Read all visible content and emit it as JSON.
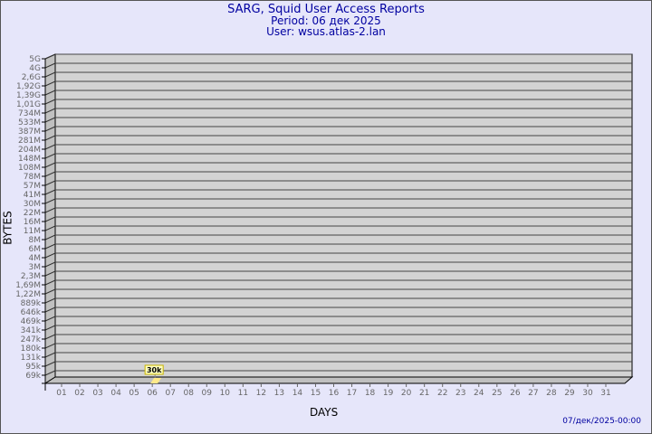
{
  "header": {
    "title": "SARG, Squid User Access Reports",
    "period": "Period: 06 дек 2025",
    "user": "User: wsus.atlas-2.lan"
  },
  "footer": {
    "timestamp": "07/дек/2025-00:00"
  },
  "colors": {
    "background": "#e6e6fa",
    "plot": "#d3d3d3",
    "title": "#0000a0",
    "bar": "#ffe98a",
    "data_label_bg": "#ffffc0"
  },
  "chart_data": {
    "type": "bar",
    "xlabel": "DAYS",
    "ylabel": "BYTES",
    "y_scale": "non-linear (tick-labelled)",
    "y_ticks": [
      "69k",
      "95k",
      "131k",
      "180k",
      "247k",
      "341k",
      "469k",
      "646k",
      "889k",
      "1,22M",
      "1,69M",
      "2,3M",
      "3M",
      "4M",
      "6M",
      "8M",
      "11M",
      "16M",
      "22M",
      "30M",
      "41M",
      "57M",
      "78M",
      "108M",
      "148M",
      "204M",
      "281M",
      "387M",
      "533M",
      "734M",
      "1,01G",
      "1,39G",
      "1,92G",
      "2,6G",
      "4G",
      "5G"
    ],
    "categories": [
      "01",
      "02",
      "03",
      "04",
      "05",
      "06",
      "07",
      "08",
      "09",
      "10",
      "11",
      "12",
      "13",
      "14",
      "15",
      "16",
      "17",
      "18",
      "19",
      "20",
      "21",
      "22",
      "23",
      "24",
      "25",
      "26",
      "27",
      "28",
      "29",
      "30",
      "31"
    ],
    "points": [
      {
        "day": "06",
        "value": 30000,
        "label": "30k"
      }
    ],
    "grid": true
  }
}
